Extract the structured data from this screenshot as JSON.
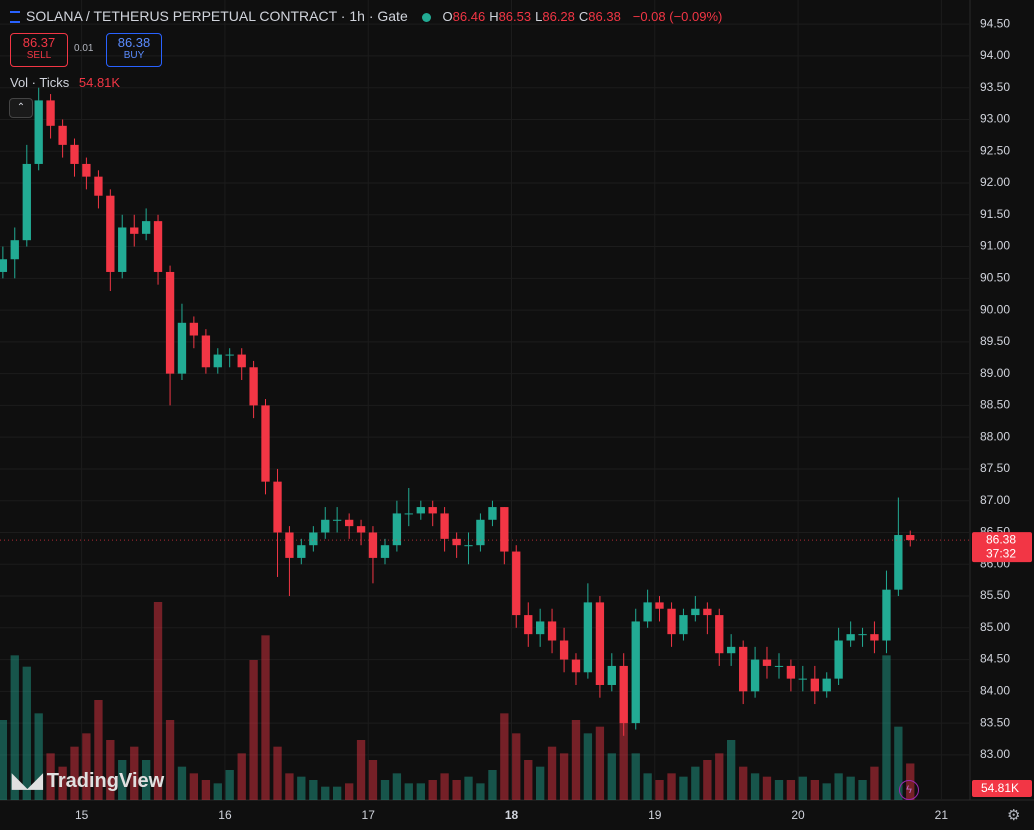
{
  "header": {
    "title": "SOLANA / TETHERUS PERPETUAL CONTRACT · 1h · Gate",
    "ohlc_keys": [
      "O",
      "H",
      "L",
      "C"
    ],
    "change": "−0.08 (−0.09%)"
  },
  "trade": {
    "sell_price": "86.37",
    "sell_label": "SELL",
    "spread": "0.01",
    "buy_price": "86.38",
    "buy_label": "BUY"
  },
  "indicator": {
    "name": "Vol · Ticks"
  },
  "logo": "TradingView",
  "chart_data": {
    "type": "candlestick",
    "x": [
      14.45,
      14.533,
      14.617,
      14.7,
      14.783,
      14.867,
      14.95,
      15.033,
      15.117,
      15.2,
      15.283,
      15.367,
      15.45,
      15.533,
      15.617,
      15.7,
      15.783,
      15.867,
      15.95,
      16.033,
      16.117,
      16.2,
      16.283,
      16.367,
      16.45,
      16.533,
      16.617,
      16.7,
      16.783,
      16.867,
      16.95,
      17.033,
      17.117,
      17.2,
      17.283,
      17.367,
      17.45,
      17.533,
      17.617,
      17.7,
      17.783,
      17.867,
      17.95,
      18.033,
      18.117,
      18.2,
      18.283,
      18.367,
      18.45,
      18.533,
      18.617,
      18.7,
      18.783,
      18.867,
      18.95,
      19.033,
      19.117,
      19.2,
      19.283,
      19.367,
      19.45,
      19.533,
      19.617,
      19.7,
      19.783,
      19.867,
      19.95,
      20.033,
      20.117,
      20.2,
      20.283,
      20.367,
      20.45,
      20.533,
      20.617,
      20.7,
      20.783
    ],
    "open": [
      90.6,
      90.8,
      91.1,
      92.3,
      93.3,
      92.9,
      92.6,
      92.3,
      92.1,
      91.8,
      90.6,
      91.3,
      91.2,
      91.4,
      90.6,
      89.0,
      89.8,
      89.6,
      89.1,
      89.3,
      89.3,
      89.1,
      88.5,
      87.3,
      86.5,
      86.1,
      86.3,
      86.5,
      86.7,
      86.7,
      86.6,
      86.5,
      86.1,
      86.3,
      86.8,
      86.8,
      86.9,
      86.8,
      86.4,
      86.3,
      86.3,
      86.7,
      86.9,
      86.2,
      85.2,
      84.9,
      85.1,
      84.8,
      84.5,
      84.3,
      85.4,
      84.1,
      84.4,
      83.5,
      85.1,
      85.4,
      85.3,
      84.9,
      85.2,
      85.3,
      85.2,
      84.6,
      84.7,
      84.0,
      84.5,
      84.4,
      84.4,
      84.2,
      84.2,
      84.0,
      84.2,
      84.8,
      84.9,
      84.9,
      84.8,
      85.6,
      86.46
    ],
    "high": [
      91.0,
      91.3,
      92.6,
      93.5,
      93.4,
      93.0,
      92.7,
      92.4,
      92.2,
      91.9,
      91.5,
      91.5,
      91.6,
      91.5,
      90.7,
      90.1,
      89.9,
      89.7,
      89.4,
      89.4,
      89.4,
      89.2,
      88.6,
      87.5,
      86.6,
      86.4,
      86.6,
      86.9,
      86.9,
      86.8,
      86.7,
      86.6,
      86.4,
      87.0,
      87.2,
      87.0,
      87.0,
      86.9,
      86.5,
      86.5,
      86.8,
      87.0,
      86.9,
      86.3,
      85.4,
      85.3,
      85.3,
      85.0,
      84.6,
      85.7,
      85.5,
      84.6,
      84.6,
      85.3,
      85.6,
      85.5,
      85.4,
      85.3,
      85.5,
      85.4,
      85.3,
      84.9,
      84.8,
      84.7,
      84.7,
      84.6,
      84.5,
      84.4,
      84.4,
      84.3,
      85.0,
      85.1,
      85.0,
      85.1,
      85.9,
      87.05,
      86.53
    ],
    "low": [
      90.5,
      90.5,
      91.0,
      92.2,
      92.7,
      92.4,
      92.1,
      91.9,
      91.6,
      90.3,
      90.5,
      91.0,
      91.1,
      90.4,
      88.5,
      88.9,
      89.4,
      89.0,
      89.0,
      89.1,
      88.9,
      88.3,
      87.1,
      85.8,
      85.5,
      86.0,
      86.2,
      86.4,
      86.5,
      86.4,
      86.3,
      85.7,
      86.0,
      86.2,
      86.6,
      86.7,
      86.6,
      86.2,
      86.1,
      86.0,
      86.2,
      86.6,
      86.0,
      85.0,
      84.7,
      84.7,
      84.6,
      84.3,
      84.1,
      84.2,
      83.9,
      84.0,
      83.3,
      83.4,
      85.0,
      85.1,
      84.7,
      84.8,
      85.1,
      84.9,
      84.4,
      84.4,
      83.8,
      83.9,
      84.2,
      84.2,
      84.0,
      84.0,
      83.8,
      83.9,
      84.1,
      84.7,
      84.7,
      84.6,
      84.6,
      85.5,
      86.28
    ],
    "close": [
      90.8,
      91.1,
      92.3,
      93.3,
      92.9,
      92.6,
      92.3,
      92.1,
      91.8,
      90.6,
      91.3,
      91.2,
      91.4,
      90.6,
      89.0,
      89.8,
      89.6,
      89.1,
      89.3,
      89.3,
      89.1,
      88.5,
      87.3,
      86.5,
      86.1,
      86.3,
      86.5,
      86.7,
      86.7,
      86.6,
      86.5,
      86.1,
      86.3,
      86.8,
      86.8,
      86.9,
      86.8,
      86.4,
      86.3,
      86.3,
      86.7,
      86.9,
      86.2,
      85.2,
      84.9,
      85.1,
      84.8,
      84.5,
      84.3,
      85.4,
      84.1,
      84.4,
      83.5,
      85.1,
      85.4,
      85.3,
      84.9,
      85.2,
      85.3,
      85.2,
      84.6,
      84.7,
      84.0,
      84.5,
      84.4,
      84.4,
      84.2,
      84.2,
      84.0,
      84.2,
      84.8,
      84.9,
      84.9,
      84.8,
      85.6,
      86.46,
      86.38
    ],
    "volume": [
      120,
      217,
      200,
      130,
      70,
      50,
      80,
      100,
      150,
      90,
      60,
      80,
      60,
      297,
      120,
      50,
      40,
      30,
      25,
      45,
      70,
      210,
      247,
      80,
      40,
      35,
      30,
      20,
      20,
      25,
      90,
      60,
      30,
      40,
      25,
      25,
      30,
      40,
      30,
      35,
      25,
      45,
      130,
      100,
      60,
      50,
      80,
      70,
      120,
      100,
      110,
      70,
      150,
      70,
      40,
      30,
      40,
      35,
      50,
      60,
      70,
      90,
      50,
      40,
      35,
      30,
      30,
      35,
      30,
      25,
      40,
      35,
      30,
      50,
      217,
      110,
      54.81
    ],
    "volume_value_label": "54.81K",
    "countdown": "37:32",
    "xlim": [
      14.43,
      21.2
    ],
    "ylim": [
      82.29,
      94.88
    ],
    "volume_ylim": [
      0,
      600
    ],
    "xticks": [
      15,
      16,
      17,
      18,
      19,
      20,
      21
    ],
    "bold_xtick": 18,
    "yticks": [
      {
        "value": 83,
        "label": "83.00"
      },
      {
        "value": 83.5,
        "label": "83.50"
      },
      {
        "value": 84,
        "label": "84.00"
      },
      {
        "value": 84.5,
        "label": "84.50"
      },
      {
        "value": 85,
        "label": "85.00"
      },
      {
        "value": 85.5,
        "label": "85.50"
      },
      {
        "value": 86,
        "label": "86.00"
      },
      {
        "value": 86.5,
        "label": "86.50"
      },
      {
        "value": 87,
        "label": "87.00"
      },
      {
        "value": 87.5,
        "label": "87.50"
      },
      {
        "value": 88,
        "label": "88.00"
      },
      {
        "value": 88.5,
        "label": "88.50"
      },
      {
        "value": 89,
        "label": "89.00"
      },
      {
        "value": 89.5,
        "label": "89.50"
      },
      {
        "value": 90,
        "label": "90.00"
      },
      {
        "value": 90.5,
        "label": "90.50"
      },
      {
        "value": 91,
        "label": "91.00"
      },
      {
        "value": 91.5,
        "label": "91.50"
      },
      {
        "value": 92,
        "label": "92.00"
      },
      {
        "value": 92.5,
        "label": "92.50"
      },
      {
        "value": 93,
        "label": "93.00"
      },
      {
        "value": 93.5,
        "label": "93.50"
      },
      {
        "value": 94,
        "label": "94.00"
      },
      {
        "value": 94.5,
        "label": "94.50"
      }
    ],
    "up_color": "#22ab94",
    "down_color": "#f23645",
    "grid": true
  }
}
